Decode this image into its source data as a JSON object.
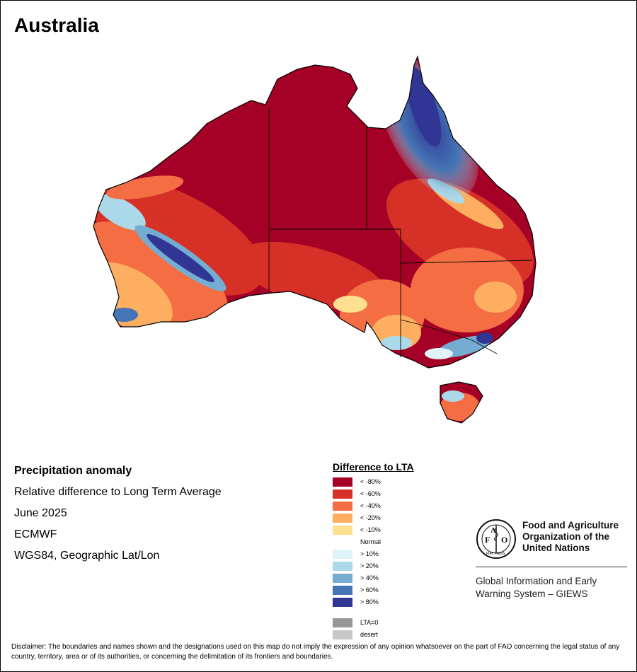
{
  "title": "Australia",
  "info": {
    "heading": "Precipitation anomaly",
    "subtitle": "Relative difference to Long Term Average",
    "period": "June 2025",
    "source": "ECMWF",
    "projection": "WGS84, Geographic Lat/Lon"
  },
  "legend": {
    "title": "Difference to LTA",
    "dry": [
      {
        "label": "< -80%",
        "color": "#a50026"
      },
      {
        "label": "< -60%",
        "color": "#d73027"
      },
      {
        "label": "< -40%",
        "color": "#f46d43"
      },
      {
        "label": "< -20%",
        "color": "#fdae61"
      },
      {
        "label": "< -10%",
        "color": "#fee090"
      }
    ],
    "normal_label": "Normal",
    "wet": [
      {
        "label": "> 10%",
        "color": "#e0f3f8"
      },
      {
        "label": "> 20%",
        "color": "#abd9e9"
      },
      {
        "label": "> 40%",
        "color": "#74add1"
      },
      {
        "label": "> 60%",
        "color": "#4575b4"
      },
      {
        "label": "> 80%",
        "color": "#313695"
      }
    ],
    "other": [
      {
        "label": "LTA=0",
        "color": "#969696"
      },
      {
        "label": "desert",
        "color": "#c8c8c8"
      }
    ]
  },
  "logo": {
    "emblem_text": "FAO",
    "motto": "FIAT PANIS",
    "org_line1": "Food and Agriculture",
    "org_line2": "Organization of the",
    "org_line3": "United Nations",
    "giews_line1": "Global Information and Early",
    "giews_line2": "Warning System – GIEWS"
  },
  "disclaimer": "Disclaimer: The boundaries and names shown and the designations used on this map do not imply the expression of any opinion whatsoever on the part of FAO concerning the legal status of any country, territory, area or of its authorities, or concerning the delimitation of its frontiers and boundaries."
}
